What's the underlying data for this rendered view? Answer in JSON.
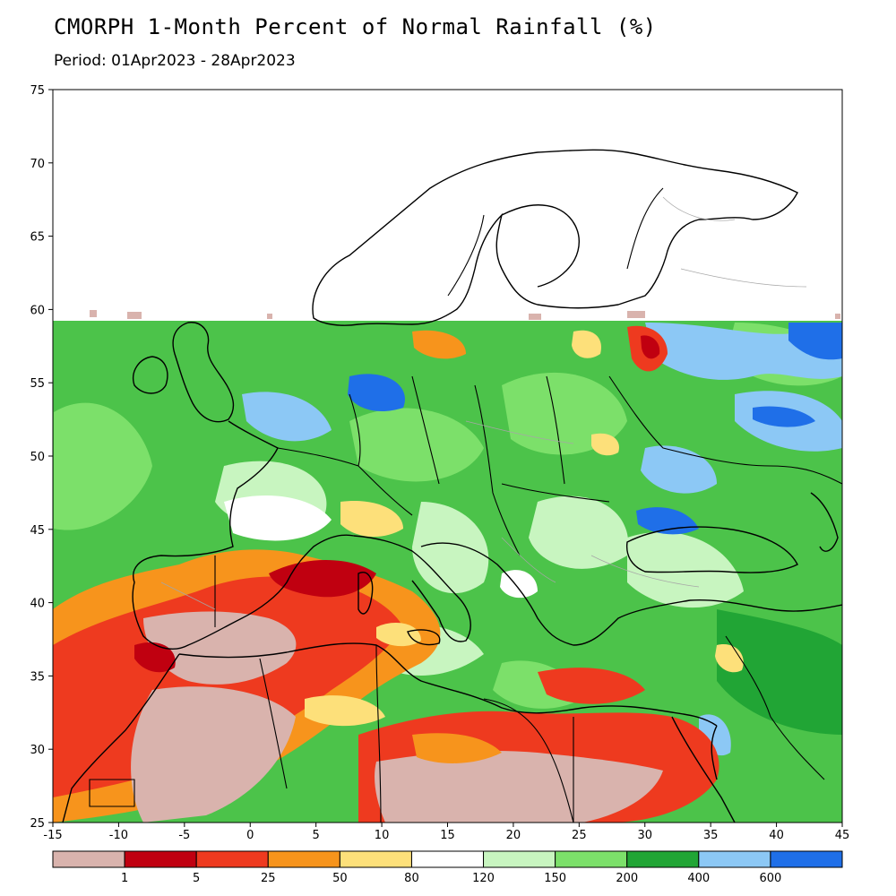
{
  "title": "CMORPH 1-Month Percent of Normal Rainfall (%)",
  "period": "Period: 01Apr2023 - 28Apr2023",
  "axes": {
    "lon_ticks": [
      "-15",
      "-10",
      "-5",
      "0",
      "5",
      "10",
      "15",
      "20",
      "25",
      "30",
      "35",
      "40",
      "45"
    ],
    "lat_ticks": [
      "75",
      "70",
      "65",
      "60",
      "55",
      "50",
      "45",
      "40",
      "35",
      "30",
      "25"
    ],
    "lon_range": [
      -15,
      45
    ],
    "lat_range": [
      25,
      75
    ],
    "data_lat_max": 59.2
  },
  "colorbar": {
    "labels": [
      "1",
      "5",
      "25",
      "50",
      "80",
      "120",
      "150",
      "200",
      "400",
      "600"
    ],
    "colors": [
      "#d9b3ad",
      "#c00010",
      "#ee3a1f",
      "#f7941c",
      "#fde07a",
      "#ffffff",
      "#c8f5c0",
      "#7ce06a",
      "#21a535",
      "#8cc8f5",
      "#1f6fe8"
    ]
  },
  "colors": {
    "ocean_green": "#4cc34a",
    "dry_brown": "#d9b3ad",
    "border": "#000000",
    "admin": "#a6a6a6"
  }
}
